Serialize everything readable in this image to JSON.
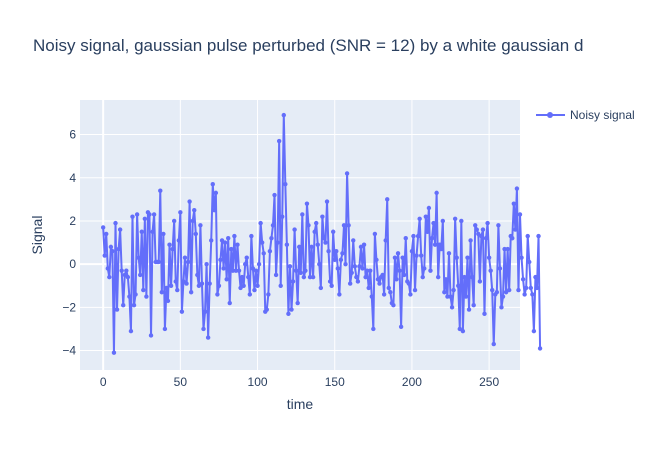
{
  "chart_data": {
    "type": "line",
    "title": "Noisy signal, gaussian pulse perturbed (SNR = 12) by a white gaussian d",
    "xlabel": "time",
    "ylabel": "Signal",
    "xlim": [
      -15,
      270
    ],
    "ylim": [
      -4.9,
      7.6
    ],
    "xticks": [
      0,
      50,
      100,
      150,
      200,
      250
    ],
    "yticks": [
      -4,
      -2,
      0,
      2,
      4,
      6
    ],
    "grid": true,
    "legend_position": "top-right",
    "colors": {
      "series": "#636efa",
      "plot_bg": "#e5ecf6",
      "grid": "#ffffff",
      "text": "#2a3f5f"
    },
    "series": [
      {
        "name": "Noisy signal",
        "x_start": 0,
        "x_step": 1,
        "y": [
          1.7,
          0.4,
          1.4,
          -0.2,
          -0.6,
          0.8,
          0.6,
          -4.1,
          1.9,
          -2.1,
          0.7,
          1.6,
          -0.3,
          -1.9,
          -0.5,
          -0.3,
          -0.6,
          -1.5,
          -3.1,
          2.2,
          -1.9,
          -1.4,
          2.3,
          0.3,
          -0.5,
          1.5,
          -1.2,
          2.1,
          -1.5,
          2.4,
          2.3,
          -3.3,
          1.5,
          2.3,
          0.1,
          0.1,
          0.1,
          3.4,
          -1.3,
          1.4,
          -3.0,
          -1.1,
          -1.7,
          0.9,
          -1.0,
          0.7,
          2.0,
          -0.8,
          -1.2,
          1.1,
          2.4,
          -2.2,
          -0.8,
          0.3,
          -0.9,
          0.1,
          2.9,
          -1.3,
          2.0,
          2.5,
          1.4,
          -0.5,
          -1.0,
          1.8,
          -0.9,
          -3.0,
          -2.2,
          0.0,
          -3.4,
          -0.9,
          1.1,
          3.7,
          2.5,
          3.3,
          -1.4,
          -1.0,
          0.2,
          1.1,
          -0.2,
          1.0,
          -0.7,
          1.2,
          -1.8,
          0.7,
          -0.3,
          1.3,
          -0.3,
          0.9,
          -0.3,
          -1.1,
          -0.6,
          -1.0,
          0.0,
          0.3,
          -0.6,
          -1.4,
          1.3,
          -0.2,
          -1.2,
          -0.3,
          -1.0,
          0.0,
          1.9,
          1.0,
          0.5,
          -2.2,
          -2.1,
          -1.4,
          0.6,
          1.2,
          1.8,
          3.2,
          -0.5,
          1.0,
          5.7,
          -1.0,
          2.2,
          6.9,
          3.7,
          0.9,
          -2.3,
          -0.1,
          -2.1,
          -0.8,
          1.6,
          -0.3,
          -1.8,
          0.8,
          -0.4,
          2.3,
          -0.6,
          -0.3,
          2.8,
          1.8,
          -0.6,
          0.8,
          -0.6,
          1.5,
          1.9,
          0.9,
          0.0,
          -1.1,
          2.2,
          1.2,
          1.0,
          2.9,
          0.6,
          -0.8,
          -1.0,
          1.5,
          0.2,
          0.6,
          -0.2,
          -1.4,
          0.2,
          0.5,
          1.8,
          0.0,
          4.2,
          1.8,
          -0.9,
          -0.4,
          1.1,
          -0.1,
          -0.6,
          -0.8,
          -0.1,
          0.8,
          -0.2,
          0.9,
          -0.6,
          -0.3,
          -1.1,
          -0.3,
          -1.5,
          -3.0,
          1.4,
          0.2,
          -0.7,
          -0.9,
          -0.6,
          -0.5,
          -1.4,
          1.1,
          3.0,
          -1.1,
          -1.3,
          -1.8,
          -1.9,
          0.3,
          -0.7,
          0.5,
          -0.3,
          -2.9,
          0.3,
          -0.5,
          1.2,
          -0.8,
          -0.9,
          -1.4,
          0.6,
          1.3,
          -1.2,
          0.4,
          1.3,
          2.1,
          0.4,
          -0.6,
          -0.2,
          2.2,
          1.5,
          2.6,
          -0.3,
          1.2,
          1.9,
          0.9,
          3.3,
          -0.6,
          0.9,
          0.7,
          2.0,
          -1.3,
          -0.7,
          -1.5,
          0.5,
          -1.5,
          -2.0,
          -1.2,
          2.1,
          0.3,
          -1.0,
          -3.0,
          2.0,
          -3.1,
          -0.6,
          -1.5,
          0.3,
          -2.1,
          1.1,
          -0.6,
          -1.9,
          1.8,
          1.6,
          1.4,
          -0.8,
          1.3,
          1.6,
          -2.3,
          1.2,
          1.9,
          0.3,
          -0.3,
          -1.2,
          -3.7,
          -1.4,
          -1.3,
          1.8,
          -0.2,
          -2.0,
          -1.5,
          0.7,
          -1.3,
          0.7,
          -1.2,
          1.3,
          1.2,
          2.8,
          1.6,
          3.5,
          -1.2,
          2.3,
          0.3,
          -0.7,
          -1.4,
          -1.1,
          1.3,
          0.1,
          -1.1,
          -1.4,
          -3.1,
          -0.6,
          -1.1,
          1.3,
          -3.9
        ]
      }
    ]
  }
}
